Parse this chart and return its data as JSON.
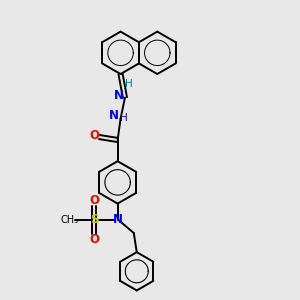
{
  "background_color": "#e8e8e8",
  "bond_color": "#000000",
  "nitrogen_color": "#0000ff",
  "oxygen_color": "#ff0000",
  "sulfur_color": "#cccc00",
  "imine_h_color": "#008080",
  "figsize": [
    3.0,
    3.0
  ],
  "dpi": 100,
  "xlim": [
    0,
    10
  ],
  "ylim": [
    0,
    10
  ]
}
